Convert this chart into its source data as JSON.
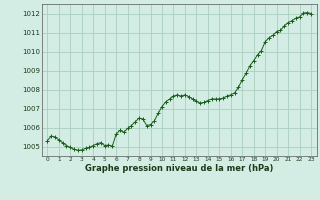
{
  "background_color": "#d4ede4",
  "grid_color": "#aacfbf",
  "line_color": "#1a5c1a",
  "marker_color": "#1a5c1a",
  "ylim": [
    1004.5,
    1012.5
  ],
  "yticks": [
    1005,
    1006,
    1007,
    1008,
    1009,
    1010,
    1011,
    1012
  ],
  "xlim": [
    -0.5,
    23.5
  ],
  "xticks": [
    0,
    1,
    2,
    3,
    4,
    5,
    6,
    7,
    8,
    9,
    10,
    11,
    12,
    13,
    14,
    15,
    16,
    17,
    18,
    19,
    20,
    21,
    22,
    23
  ],
  "xlabel": "Graphe pression niveau de la mer (hPa)",
  "hours": [
    0,
    0.33,
    0.67,
    1,
    1.33,
    1.67,
    2,
    2.33,
    2.67,
    3,
    3.33,
    3.67,
    4,
    4.33,
    4.67,
    5,
    5.33,
    5.67,
    6,
    6.33,
    6.67,
    7,
    7.33,
    7.67,
    8,
    8.33,
    8.67,
    9,
    9.33,
    9.67,
    10,
    10.33,
    10.67,
    11,
    11.33,
    11.67,
    12,
    12.33,
    12.67,
    13,
    13.33,
    13.67,
    14,
    14.33,
    14.67,
    15,
    15.33,
    15.67,
    16,
    16.33,
    16.67,
    17,
    17.33,
    17.67,
    18,
    18.33,
    18.67,
    19,
    19.33,
    19.67,
    20,
    20.33,
    20.67,
    21,
    21.33,
    21.67,
    22,
    22.33,
    22.67,
    23
  ],
  "pressure": [
    1005.3,
    1005.55,
    1005.5,
    1005.35,
    1005.2,
    1005.05,
    1004.95,
    1004.85,
    1004.8,
    1004.82,
    1004.9,
    1004.95,
    1005.05,
    1005.15,
    1005.2,
    1005.05,
    1005.08,
    1005.02,
    1005.65,
    1005.85,
    1005.75,
    1005.95,
    1006.1,
    1006.3,
    1006.5,
    1006.45,
    1006.1,
    1006.15,
    1006.35,
    1006.75,
    1007.1,
    1007.35,
    1007.5,
    1007.65,
    1007.72,
    1007.65,
    1007.72,
    1007.62,
    1007.5,
    1007.38,
    1007.28,
    1007.32,
    1007.42,
    1007.5,
    1007.5,
    1007.5,
    1007.55,
    1007.65,
    1007.72,
    1007.82,
    1008.12,
    1008.52,
    1008.85,
    1009.25,
    1009.52,
    1009.82,
    1010.05,
    1010.52,
    1010.72,
    1010.85,
    1011.05,
    1011.12,
    1011.35,
    1011.52,
    1011.62,
    1011.75,
    1011.82,
    1012.02,
    1012.05,
    1012.0
  ]
}
